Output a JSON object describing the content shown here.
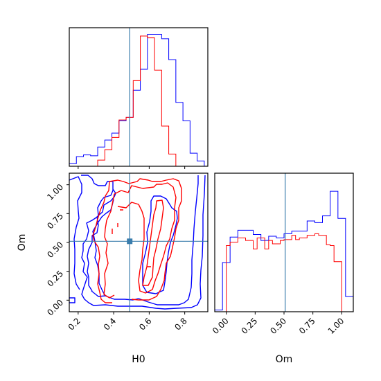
{
  "chart_data": {
    "type": "corner",
    "parameters": [
      "H0",
      "Om"
    ],
    "truth": {
      "H0": 0.49,
      "Om": 0.51
    },
    "truth_color": "#3a7dac",
    "series": [
      {
        "color": "#0000ff"
      },
      {
        "color": "#ff0000"
      }
    ],
    "panels": {
      "h0_hist": {
        "xlim": [
          0.15,
          0.93
        ],
        "bins_blue": {
          "edges": [
            0.15,
            0.19,
            0.23,
            0.27,
            0.31,
            0.35,
            0.39,
            0.43,
            0.47,
            0.51,
            0.55,
            0.59,
            0.63,
            0.67,
            0.71,
            0.75,
            0.79,
            0.83,
            0.87,
            0.91
          ],
          "heights": [
            3,
            11,
            13,
            12,
            22,
            30,
            38,
            52,
            56,
            87,
            111,
            151,
            151,
            146,
            122,
            73,
            52,
            15,
            6
          ]
        },
        "bins_red": {
          "edges": [
            0.31,
            0.35,
            0.39,
            0.43,
            0.47,
            0.51,
            0.55,
            0.59,
            0.63,
            0.67,
            0.71,
            0.75
          ],
          "heights": [
            7,
            19,
            33,
            53,
            56,
            98,
            149,
            147,
            110,
            46,
            14
          ]
        }
      },
      "scatter_2d": {
        "xlim": [
          0.15,
          0.93
        ],
        "ylim": [
          -0.1,
          1.1
        ],
        "xticks": [
          "0.2",
          "0.4",
          "0.6",
          "0.8"
        ],
        "yticks": [
          "0.00",
          "0.25",
          "0.50",
          "0.75",
          "1.00"
        ],
        "xlabel": "H0",
        "ylabel": "Om"
      },
      "om_hist": {
        "xlim": [
          -0.1,
          1.1
        ],
        "xticks": [
          "0.00",
          "0.25",
          "0.50",
          "0.75",
          "1.00"
        ],
        "xlabel": "Om",
        "bins_blue": {
          "edges": [
            -0.1,
            -0.033,
            0.033,
            0.1,
            0.167,
            0.233,
            0.3,
            0.367,
            0.433,
            0.5,
            0.567,
            0.633,
            0.7,
            0.767,
            0.833,
            0.9,
            0.967,
            1.033,
            1.1
          ],
          "heights": [
            2,
            58,
            88,
            96,
            96,
            91,
            84,
            89,
            87,
            92,
            95,
            95,
            107,
            105,
            113,
            142,
            110,
            18
          ]
        },
        "bins_red": {
          "edges": [
            0.0,
            0.033,
            0.067,
            0.1,
            0.133,
            0.167,
            0.2,
            0.233,
            0.267,
            0.3,
            0.333,
            0.367,
            0.4,
            0.433,
            0.467,
            0.5,
            0.533,
            0.567,
            0.6,
            0.633,
            0.667,
            0.7,
            0.733,
            0.767,
            0.8,
            0.833,
            0.867,
            0.9,
            0.933,
            0.967,
            1.0
          ],
          "heights": [
            78,
            82,
            82,
            87,
            87,
            84,
            84,
            74,
            87,
            87,
            74,
            84,
            80,
            80,
            84,
            85,
            85,
            90,
            85,
            87,
            87,
            90,
            90,
            92,
            90,
            90,
            79,
            78,
            59,
            59
          ]
        }
      }
    }
  }
}
